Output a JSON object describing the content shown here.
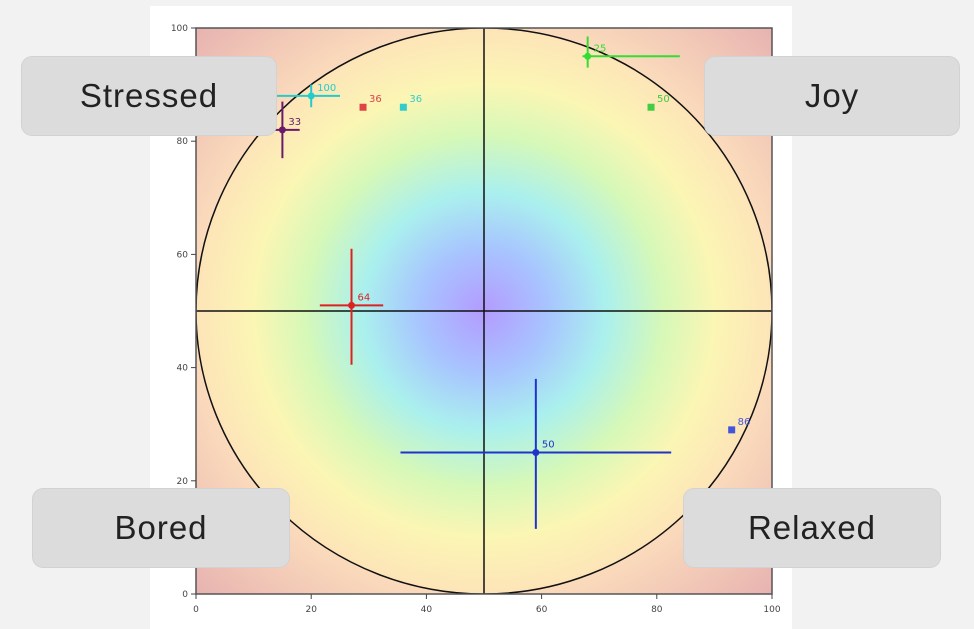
{
  "labels": {
    "stressed": "Stressed",
    "joy": "Joy",
    "bored": "Bored",
    "relaxed": "Relaxed"
  },
  "colors": {
    "frame_border": "#555555",
    "axis_line": "#111111",
    "circle_outline": "#111111",
    "corner_fill": "#e8b8b8"
  },
  "chart_data": {
    "type": "scatter",
    "title": "",
    "xlabel": "",
    "ylabel": "",
    "xlim": [
      0,
      100
    ],
    "ylim": [
      0,
      100
    ],
    "x_ticks": [
      0,
      20,
      40,
      60,
      80,
      100
    ],
    "y_ticks": [
      0,
      20,
      40,
      60,
      80,
      100
    ],
    "grid": false,
    "background": "radial rainbow gradient inside circle of radius 50 centered at (50, 50)",
    "reference_lines": {
      "vertical_x": 50,
      "horizontal_y": 50
    },
    "points": [
      {
        "x": 68,
        "y": 95,
        "label": "25",
        "color": "#33dd33",
        "marker": "circle",
        "x_err": [
          0.9,
          16
        ],
        "y_err": [
          2,
          3.5
        ]
      },
      {
        "x": 79,
        "y": 86,
        "label": "50",
        "color": "#44cc44",
        "marker": "square"
      },
      {
        "x": 20,
        "y": 88,
        "label": "100",
        "color": "#22cccc",
        "marker": "circle",
        "x_err": [
          6,
          5
        ],
        "y_err": [
          2,
          2
        ]
      },
      {
        "x": 29,
        "y": 86,
        "label": "36",
        "color": "#dd4444",
        "marker": "square"
      },
      {
        "x": 36,
        "y": 86,
        "label": "36",
        "color": "#33cccc",
        "marker": "square"
      },
      {
        "x": 15,
        "y": 82,
        "label": "33",
        "color": "#6a1a6a",
        "marker": "circle",
        "x_err": [
          3,
          3
        ],
        "y_err": [
          5,
          5
        ]
      },
      {
        "x": 27,
        "y": 51,
        "label": "64",
        "color": "#dd2222",
        "marker": "circle",
        "x_err": [
          5.5,
          5.5
        ],
        "y_err": [
          10.5,
          10
        ]
      },
      {
        "x": 59,
        "y": 25,
        "label": "50",
        "color": "#2233cc",
        "marker": "circle",
        "x_err": [
          23.5,
          23.5
        ],
        "y_err": [
          13.5,
          13
        ]
      },
      {
        "x": 93,
        "y": 29,
        "label": "86",
        "color": "#4455dd",
        "marker": "square"
      }
    ]
  }
}
